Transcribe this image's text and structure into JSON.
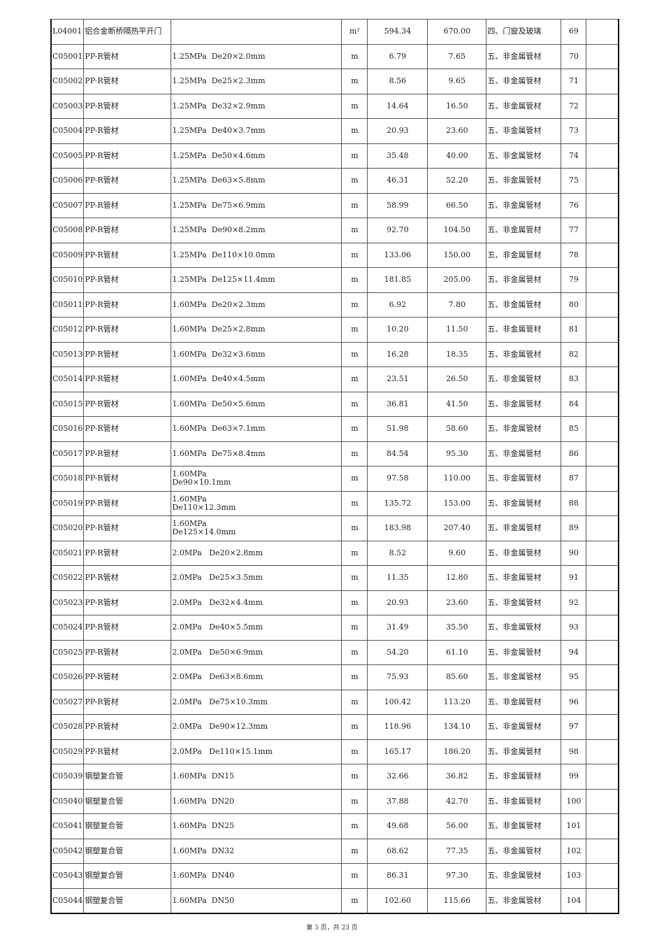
{
  "rows": [
    [
      "L04001",
      "铝合金断桥隔热平开门",
      "",
      "m²",
      "594.34",
      "670.00",
      "四、门窗及玻璃",
      "69",
      ""
    ],
    [
      "C05001",
      "PP-R管材",
      "1.25MPa  De20×2.0mm",
      "m",
      "6.79",
      "7.65",
      "五、非金属管材",
      "70",
      ""
    ],
    [
      "C05002",
      "PP-R管材",
      "1.25MPa  De25×2.3mm",
      "m",
      "8.56",
      "9.65",
      "五、非金属管材",
      "71",
      ""
    ],
    [
      "C05003",
      "PP-R管材",
      "1.25MPa  De32×2.9mm",
      "m",
      "14.64",
      "16.50",
      "五、非金属管材",
      "72",
      ""
    ],
    [
      "C05004",
      "PP-R管材",
      "1.25MPa  De40×3.7mm",
      "m",
      "20.93",
      "23.60",
      "五、非金属管材",
      "73",
      ""
    ],
    [
      "C05005",
      "PP-R管材",
      "1.25MPa  De50×4.6mm",
      "m",
      "35.48",
      "40.00",
      "五、非金属管材",
      "74",
      ""
    ],
    [
      "C05006",
      "PP-R管材",
      "1.25MPa  De63×5.8mm",
      "m",
      "46.31",
      "52.20",
      "五、非金属管材",
      "75",
      ""
    ],
    [
      "C05007",
      "PP-R管材",
      "1.25MPa  De75×6.9mm",
      "m",
      "58.99",
      "66.50",
      "五、非金属管材",
      "76",
      ""
    ],
    [
      "C05008",
      "PP-R管材",
      "1.25MPa  De90×8.2mm",
      "m",
      "92.70",
      "104.50",
      "五、非金属管材",
      "77",
      ""
    ],
    [
      "C05009",
      "PP-R管材",
      "1.25MPa  De110×10.0mm",
      "m",
      "133.06",
      "150.00",
      "五、非金属管材",
      "78",
      ""
    ],
    [
      "C05010",
      "PP-R管材",
      "1.25MPa  De125×11.4mm",
      "m",
      "181.85",
      "205.00",
      "五、非金属管材",
      "79",
      ""
    ],
    [
      "C05011",
      "PP-R管材",
      "1.60MPa  De20×2.3mm",
      "m",
      "6.92",
      "7.80",
      "五、非金属管材",
      "80",
      ""
    ],
    [
      "C05012",
      "PP-R管材",
      "1.60MPa  De25×2.8mm",
      "m",
      "10.20",
      "11.50",
      "五、非金属管材",
      "81",
      ""
    ],
    [
      "C05013",
      "PP-R管材",
      "1.60MPa  De32×3.6mm",
      "m",
      "16.28",
      "18.35",
      "五、非金属管材",
      "82",
      ""
    ],
    [
      "C05014",
      "PP-R管材",
      "1.60MPa  De40×4.5mm",
      "m",
      "23.51",
      "26.50",
      "五、非金属管材",
      "83",
      ""
    ],
    [
      "C05015",
      "PP-R管材",
      "1.60MPa  De50×5.6mm",
      "m",
      "36.81",
      "41.50",
      "五、非金属管材",
      "84",
      ""
    ],
    [
      "C05016",
      "PP-R管材",
      "1.60MPa  De63×7.1mm",
      "m",
      "51.98",
      "58.60",
      "五、非金属管材",
      "85",
      ""
    ],
    [
      "C05017",
      "PP-R管材",
      "1.60MPa  De75×8.4mm",
      "m",
      "84.54",
      "95.30",
      "五、非金属管材",
      "86",
      ""
    ],
    [
      "C05018",
      "PP-R管材",
      "1.60MPa\nDe90×10.1mm",
      "m",
      "97.58",
      "110.00",
      "五、非金属管材",
      "87",
      ""
    ],
    [
      "C05019",
      "PP-R管材",
      "1.60MPa\nDe110×12.3mm",
      "m",
      "135.72",
      "153.00",
      "五、非金属管材",
      "88",
      ""
    ],
    [
      "C05020",
      "PP-R管材",
      "1.60MPa\nDe125×14.0mm",
      "m",
      "183.98",
      "207.40",
      "五、非金属管材",
      "89",
      ""
    ],
    [
      "C05021",
      "PP-R管材",
      "2.0MPa   De20×2.8mm",
      "m",
      "8.52",
      "9.60",
      "五、非金属管材",
      "90",
      ""
    ],
    [
      "C05022",
      "PP-R管材",
      "2.0MPa   De25×3.5mm",
      "m",
      "11.35",
      "12.80",
      "五、非金属管材",
      "91",
      ""
    ],
    [
      "C05023",
      "PP-R管材",
      "2.0MPa   De32×4.4mm",
      "m",
      "20.93",
      "23.60",
      "五、非金属管材",
      "92",
      ""
    ],
    [
      "C05024",
      "PP-R管材",
      "2.0MPa   De40×5.5mm",
      "m",
      "31.49",
      "35.50",
      "五、非金属管材",
      "93",
      ""
    ],
    [
      "C05025",
      "PP-R管材",
      "2.0MPa   De50×6.9mm",
      "m",
      "54.20",
      "61.10",
      "五、非金属管材",
      "94",
      ""
    ],
    [
      "C05026",
      "PP-R管材",
      "2.0MPa   De63×8.6mm",
      "m",
      "75.93",
      "85.60",
      "五、非金属管材",
      "95",
      ""
    ],
    [
      "C05027",
      "PP-R管材",
      "2.0MPa   De75×10.3mm",
      "m",
      "100.42",
      "113.20",
      "五、非金属管材",
      "96",
      ""
    ],
    [
      "C05028",
      "PP-R管材",
      "2.0MPa   De90×12.3mm",
      "m",
      "118.96",
      "134.10",
      "五、非金属管材",
      "97",
      ""
    ],
    [
      "C05029",
      "PP-R管材",
      "2.0MPa   De110×15.1mm",
      "m",
      "165.17",
      "186.20",
      "五、非金属管材",
      "98",
      ""
    ],
    [
      "C05039",
      "钢塑复合管",
      "1.60MPa  DN15",
      "m",
      "32.66",
      "36.82",
      "五、非金属管材",
      "99",
      ""
    ],
    [
      "C05040",
      "钢塑复合管",
      "1.60MPa  DN20",
      "m",
      "37.88",
      "42.70",
      "五、非金属管材",
      "100",
      ""
    ],
    [
      "C05041",
      "钢塑复合管",
      "1.60MPa  DN25",
      "m",
      "49.68",
      "56.00",
      "五、非金属管材",
      "101",
      ""
    ],
    [
      "C05042",
      "钢塑复合管",
      "1.60MPa  DN32",
      "m",
      "68.62",
      "77.35",
      "五、非金属管材",
      "102",
      ""
    ],
    [
      "C05043",
      "钢塑复合管",
      "1.60MPa  DN40",
      "m",
      "86.31",
      "97.30",
      "五、非金属管材",
      "103",
      ""
    ],
    [
      "C05044",
      "钢塑复合管",
      "1.60MPa  DN50",
      "m",
      "102.60",
      "115.66",
      "五、非金属管材",
      "104",
      ""
    ]
  ],
  "footer": "第 3 页，共 23 页"
}
